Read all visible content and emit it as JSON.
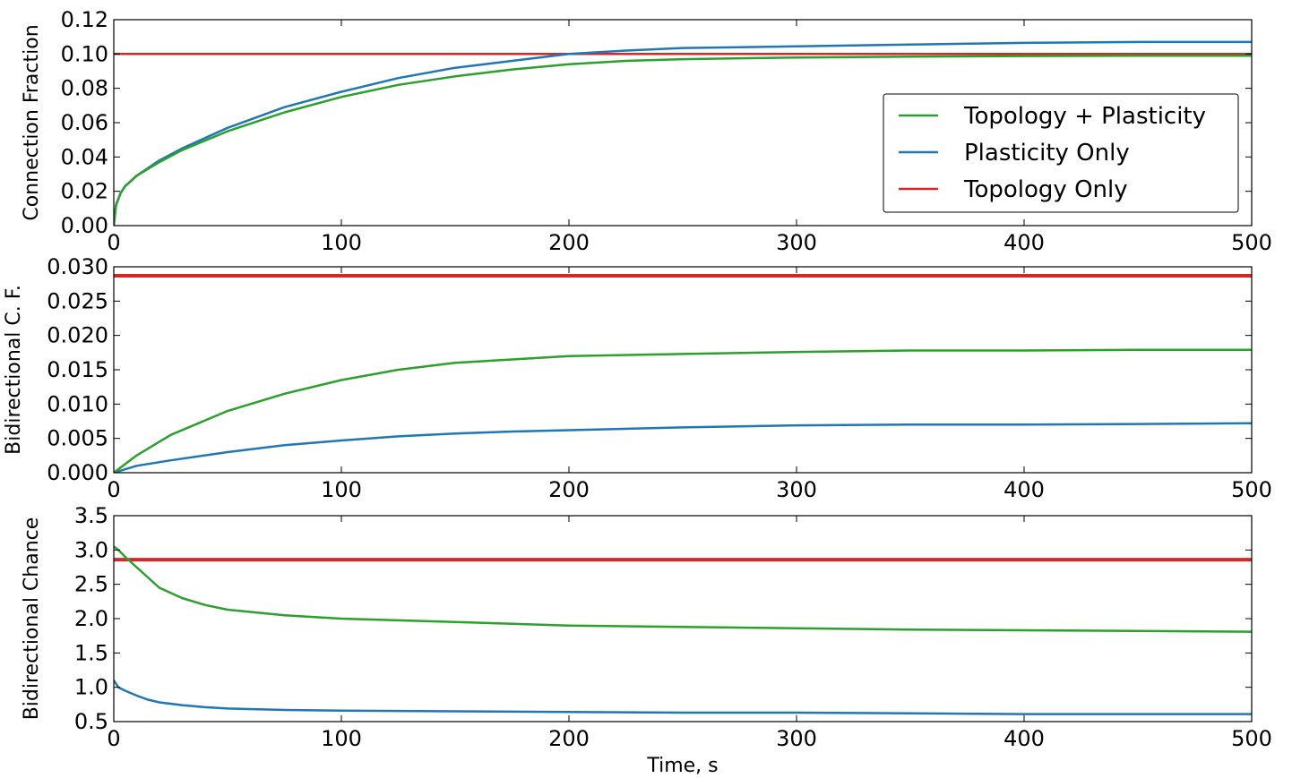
{
  "chart_data": [
    {
      "type": "line",
      "xlabel": "",
      "ylabel": "Connection Fraction",
      "xlim": [
        0,
        500
      ],
      "ylim": [
        0,
        0.12
      ],
      "xticks": [
        "0",
        "100",
        "200",
        "300",
        "400",
        "500"
      ],
      "yticks": [
        "0.00",
        "0.02",
        "0.04",
        "0.06",
        "0.08",
        "0.10",
        "0.12"
      ],
      "grid": false,
      "legend": "center-right",
      "series": [
        {
          "name": "Topology + Plasticity",
          "color": "#2ca02c",
          "x": [
            0,
            1,
            3,
            5,
            10,
            20,
            30,
            50,
            75,
            100,
            125,
            150,
            175,
            200,
            225,
            250,
            275,
            300,
            350,
            400,
            450,
            500
          ],
          "y": [
            0,
            0.012,
            0.019,
            0.023,
            0.029,
            0.037,
            0.044,
            0.055,
            0.066,
            0.075,
            0.082,
            0.087,
            0.091,
            0.094,
            0.096,
            0.097,
            0.0975,
            0.098,
            0.0985,
            0.0988,
            0.099,
            0.099
          ]
        },
        {
          "name": "Plasticity Only",
          "color": "#1f77b4",
          "x": [
            0,
            1,
            3,
            5,
            10,
            20,
            30,
            50,
            75,
            100,
            125,
            150,
            175,
            200,
            225,
            250,
            275,
            300,
            350,
            400,
            450,
            500
          ],
          "y": [
            0,
            0.012,
            0.019,
            0.023,
            0.029,
            0.038,
            0.045,
            0.057,
            0.069,
            0.078,
            0.086,
            0.092,
            0.096,
            0.1,
            0.102,
            0.1035,
            0.104,
            0.1045,
            0.1055,
            0.1065,
            0.107,
            0.107
          ]
        },
        {
          "name": "Topology Only",
          "color": "#d62728",
          "x": [
            0,
            500
          ],
          "y": [
            0.1,
            0.1
          ]
        }
      ]
    },
    {
      "type": "line",
      "xlabel": "",
      "ylabel": "Bidirectional C. F.",
      "xlim": [
        0,
        500
      ],
      "ylim": [
        0,
        0.03
      ],
      "xticks": [
        "0",
        "100",
        "200",
        "300",
        "400",
        "500"
      ],
      "yticks": [
        "0.000",
        "0.005",
        "0.010",
        "0.015",
        "0.020",
        "0.025",
        "0.030"
      ],
      "grid": false,
      "series": [
        {
          "name": "Topology + Plasticity",
          "color": "#2ca02c",
          "x": [
            0,
            10,
            25,
            50,
            75,
            100,
            125,
            150,
            175,
            200,
            250,
            300,
            350,
            400,
            450,
            500
          ],
          "y": [
            0,
            0.0025,
            0.0055,
            0.009,
            0.0115,
            0.0135,
            0.015,
            0.016,
            0.0165,
            0.017,
            0.0173,
            0.0176,
            0.0178,
            0.0178,
            0.0179,
            0.0179
          ]
        },
        {
          "name": "Plasticity Only",
          "color": "#1f77b4",
          "x": [
            0,
            10,
            25,
            50,
            75,
            100,
            125,
            150,
            175,
            200,
            250,
            300,
            350,
            400,
            450,
            500
          ],
          "y": [
            0,
            0.001,
            0.0018,
            0.003,
            0.004,
            0.0047,
            0.0053,
            0.0057,
            0.006,
            0.0062,
            0.0066,
            0.0069,
            0.007,
            0.007,
            0.0071,
            0.0072
          ]
        },
        {
          "name": "Topology Only",
          "color": "#d62728",
          "x": [
            0,
            500
          ],
          "y": [
            0.0287,
            0.0287
          ]
        }
      ]
    },
    {
      "type": "line",
      "xlabel": "Time, s",
      "ylabel": "Bidirectional Chance",
      "xlim": [
        0,
        500
      ],
      "ylim": [
        0.5,
        3.5
      ],
      "xticks": [
        "0",
        "100",
        "200",
        "300",
        "400",
        "500"
      ],
      "yticks": [
        "0.5",
        "1.0",
        "1.5",
        "2.0",
        "2.5",
        "3.0",
        "3.5"
      ],
      "grid": false,
      "series": [
        {
          "name": "Topology + Plasticity",
          "color": "#2ca02c",
          "x": [
            0,
            2,
            5,
            10,
            15,
            20,
            30,
            40,
            50,
            75,
            100,
            150,
            200,
            250,
            300,
            350,
            400,
            450,
            500
          ],
          "y": [
            3.05,
            3.0,
            2.9,
            2.75,
            2.6,
            2.45,
            2.3,
            2.2,
            2.13,
            2.05,
            2.0,
            1.95,
            1.9,
            1.88,
            1.86,
            1.84,
            1.83,
            1.82,
            1.81
          ]
        },
        {
          "name": "Plasticity Only",
          "color": "#1f77b4",
          "x": [
            0,
            2,
            5,
            10,
            15,
            20,
            30,
            40,
            50,
            75,
            100,
            150,
            200,
            250,
            300,
            350,
            400,
            450,
            500
          ],
          "y": [
            1.1,
            1.0,
            0.95,
            0.88,
            0.82,
            0.78,
            0.74,
            0.71,
            0.69,
            0.67,
            0.66,
            0.65,
            0.64,
            0.63,
            0.63,
            0.62,
            0.61,
            0.61,
            0.61
          ]
        },
        {
          "name": "Topology Only",
          "color": "#d62728",
          "x": [
            0,
            500
          ],
          "y": [
            2.86,
            2.86
          ]
        }
      ]
    }
  ]
}
